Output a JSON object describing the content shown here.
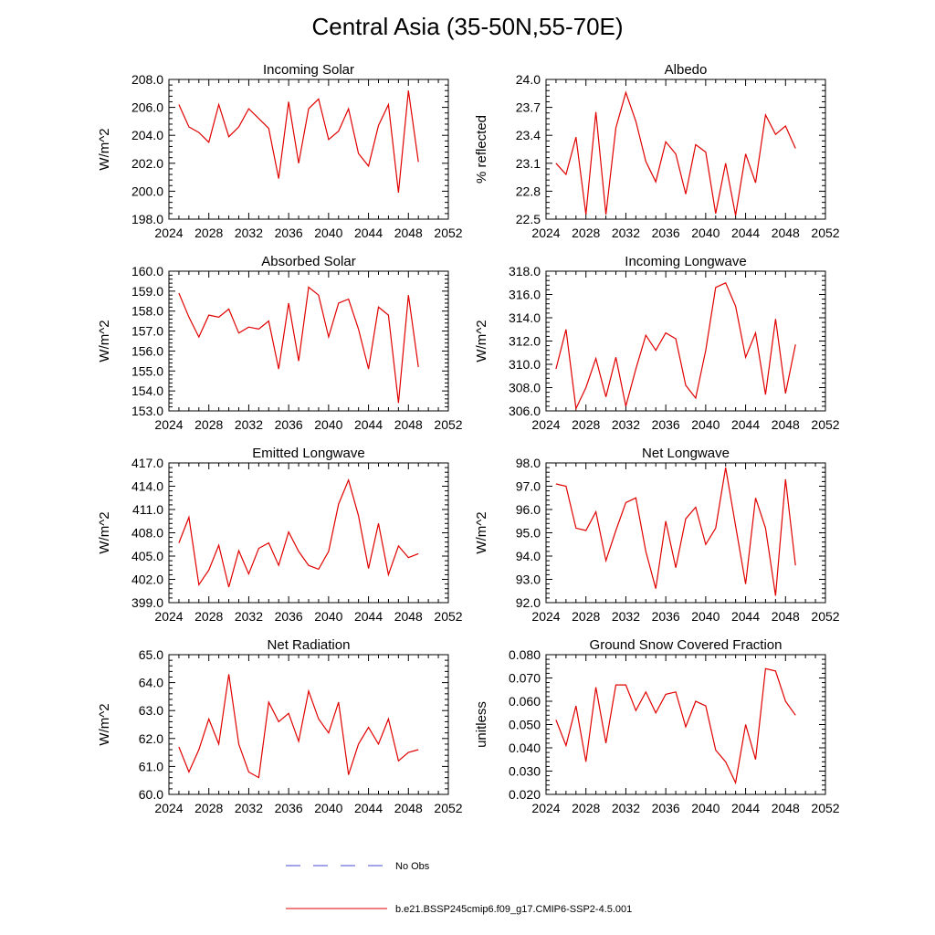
{
  "title": "Central Asia (35-50N,55-70E)",
  "legend": [
    {
      "label": "No Obs",
      "color": "#4a4ad0",
      "dash": true
    },
    {
      "label": "b.e21.BSSP245cmip6.f09_g17.CMIP6-SSP2-4.5.001",
      "color": "#e00000",
      "dash": false
    }
  ],
  "chart_data": [
    {
      "type": "line",
      "title": "Incoming Solar",
      "ylabel": "W/m^2",
      "xlim": [
        2024,
        2052
      ],
      "ylim": [
        198.0,
        208.0
      ],
      "xticks": [
        "2024",
        "2028",
        "2032",
        "2036",
        "2040",
        "2044",
        "2048",
        "2052"
      ],
      "yticks": [
        "198.0",
        "200.0",
        "202.0",
        "204.0",
        "206.0",
        "208.0"
      ],
      "x": [
        2025,
        2026,
        2027,
        2028,
        2029,
        2030,
        2031,
        2032,
        2033,
        2034,
        2035,
        2036,
        2037,
        2038,
        2039,
        2040,
        2041,
        2042,
        2043,
        2044,
        2045,
        2046,
        2047,
        2048,
        2049
      ],
      "series": [
        {
          "color": "#e00000",
          "values": [
            206.2,
            204.6,
            204.2,
            203.5,
            206.2,
            203.9,
            204.6,
            205.9,
            205.2,
            204.5,
            200.9,
            206.4,
            202.0,
            205.9,
            206.6,
            203.7,
            204.3,
            205.9,
            202.7,
            201.8,
            204.7,
            206.2,
            199.9,
            207.2,
            202.1
          ]
        }
      ]
    },
    {
      "type": "line",
      "title": "Albedo",
      "ylabel": "% reflected",
      "xlim": [
        2024,
        2052
      ],
      "ylim": [
        22.5,
        24.0
      ],
      "xticks": [
        "2024",
        "2028",
        "2032",
        "2036",
        "2040",
        "2044",
        "2048",
        "2052"
      ],
      "yticks": [
        "22.5",
        "22.8",
        "23.1",
        "23.4",
        "23.7",
        "24.0"
      ],
      "x": [
        2025,
        2026,
        2027,
        2028,
        2029,
        2030,
        2031,
        2032,
        2033,
        2034,
        2035,
        2036,
        2037,
        2038,
        2039,
        2040,
        2041,
        2042,
        2043,
        2044,
        2045,
        2046,
        2047,
        2048,
        2049
      ],
      "series": [
        {
          "color": "#e00000",
          "values": [
            23.1,
            22.98,
            23.38,
            22.55,
            23.65,
            22.55,
            23.48,
            23.86,
            23.55,
            23.12,
            22.9,
            23.33,
            23.2,
            22.77,
            23.3,
            23.22,
            22.56,
            23.1,
            22.54,
            23.2,
            22.89,
            23.62,
            23.41,
            23.5,
            23.26
          ]
        }
      ]
    },
    {
      "type": "line",
      "title": "Absorbed Solar",
      "ylabel": "W/m^2",
      "xlim": [
        2024,
        2052
      ],
      "ylim": [
        153.0,
        160.0
      ],
      "xticks": [
        "2024",
        "2028",
        "2032",
        "2036",
        "2040",
        "2044",
        "2048",
        "2052"
      ],
      "yticks": [
        "153.0",
        "154.0",
        "155.0",
        "156.0",
        "157.0",
        "158.0",
        "159.0",
        "160.0"
      ],
      "x": [
        2025,
        2026,
        2027,
        2028,
        2029,
        2030,
        2031,
        2032,
        2033,
        2034,
        2035,
        2036,
        2037,
        2038,
        2039,
        2040,
        2041,
        2042,
        2043,
        2044,
        2045,
        2046,
        2047,
        2048,
        2049
      ],
      "series": [
        {
          "color": "#e00000",
          "values": [
            158.9,
            157.7,
            156.7,
            157.8,
            157.7,
            158.1,
            156.9,
            157.2,
            157.1,
            157.5,
            155.1,
            158.4,
            155.5,
            159.2,
            158.8,
            156.7,
            158.4,
            158.6,
            157.1,
            155.1,
            158.2,
            157.8,
            153.4,
            158.8,
            155.2
          ]
        }
      ]
    },
    {
      "type": "line",
      "title": "Incoming Longwave",
      "ylabel": "W/m^2",
      "xlim": [
        2024,
        2052
      ],
      "ylim": [
        306.0,
        318.0
      ],
      "xticks": [
        "2024",
        "2028",
        "2032",
        "2036",
        "2040",
        "2044",
        "2048",
        "2052"
      ],
      "yticks": [
        "306.0",
        "308.0",
        "310.0",
        "312.0",
        "314.0",
        "316.0",
        "318.0"
      ],
      "x": [
        2025,
        2026,
        2027,
        2028,
        2029,
        2030,
        2031,
        2032,
        2033,
        2034,
        2035,
        2036,
        2037,
        2038,
        2039,
        2040,
        2041,
        2042,
        2043,
        2044,
        2045,
        2046,
        2047,
        2048,
        2049
      ],
      "series": [
        {
          "color": "#e00000",
          "values": [
            309.6,
            313.0,
            306.2,
            308.0,
            310.5,
            307.2,
            310.6,
            306.4,
            309.6,
            312.5,
            311.2,
            312.7,
            312.2,
            308.2,
            307.1,
            311.2,
            316.6,
            317.0,
            315.0,
            310.6,
            312.7,
            307.4,
            313.9,
            307.5,
            311.7
          ]
        }
      ]
    },
    {
      "type": "line",
      "title": "Emitted Longwave",
      "ylabel": "W/m^2",
      "xlim": [
        2024,
        2052
      ],
      "ylim": [
        399.0,
        417.0
      ],
      "xticks": [
        "2024",
        "2028",
        "2032",
        "2036",
        "2040",
        "2044",
        "2048",
        "2052"
      ],
      "yticks": [
        "399.0",
        "402.0",
        "405.0",
        "408.0",
        "411.0",
        "414.0",
        "417.0"
      ],
      "x": [
        2025,
        2026,
        2027,
        2028,
        2029,
        2030,
        2031,
        2032,
        2033,
        2034,
        2035,
        2036,
        2037,
        2038,
        2039,
        2040,
        2041,
        2042,
        2043,
        2044,
        2045,
        2046,
        2047,
        2048,
        2049
      ],
      "series": [
        {
          "color": "#e00000",
          "values": [
            406.7,
            410.0,
            401.3,
            403.2,
            406.4,
            401.0,
            405.7,
            402.7,
            406.0,
            406.7,
            403.8,
            408.1,
            405.6,
            403.8,
            403.3,
            405.6,
            411.7,
            414.8,
            410.2,
            403.4,
            409.2,
            402.6,
            406.3,
            404.8,
            405.3
          ]
        }
      ]
    },
    {
      "type": "line",
      "title": "Net Longwave",
      "ylabel": "W/m^2",
      "xlim": [
        2024,
        2052
      ],
      "ylim": [
        92.0,
        98.0
      ],
      "xticks": [
        "2024",
        "2028",
        "2032",
        "2036",
        "2040",
        "2044",
        "2048",
        "2052"
      ],
      "yticks": [
        "92.0",
        "93.0",
        "94.0",
        "95.0",
        "96.0",
        "97.0",
        "98.0"
      ],
      "x": [
        2025,
        2026,
        2027,
        2028,
        2029,
        2030,
        2031,
        2032,
        2033,
        2034,
        2035,
        2036,
        2037,
        2038,
        2039,
        2040,
        2041,
        2042,
        2043,
        2044,
        2045,
        2046,
        2047,
        2048,
        2049
      ],
      "series": [
        {
          "color": "#e00000",
          "values": [
            97.1,
            97.0,
            95.2,
            95.1,
            95.9,
            93.8,
            95.1,
            96.3,
            96.5,
            94.2,
            92.6,
            95.5,
            93.5,
            95.6,
            96.1,
            94.5,
            95.2,
            97.8,
            95.3,
            92.8,
            96.5,
            95.2,
            92.3,
            97.3,
            93.6
          ]
        }
      ]
    },
    {
      "type": "line",
      "title": "Net Radiation",
      "ylabel": "W/m^2",
      "xlim": [
        2024,
        2052
      ],
      "ylim": [
        60.0,
        65.0
      ],
      "xticks": [
        "2024",
        "2028",
        "2032",
        "2036",
        "2040",
        "2044",
        "2048",
        "2052"
      ],
      "yticks": [
        "60.0",
        "61.0",
        "62.0",
        "63.0",
        "64.0",
        "65.0"
      ],
      "x": [
        2025,
        2026,
        2027,
        2028,
        2029,
        2030,
        2031,
        2032,
        2033,
        2034,
        2035,
        2036,
        2037,
        2038,
        2039,
        2040,
        2041,
        2042,
        2043,
        2044,
        2045,
        2046,
        2047,
        2048,
        2049
      ],
      "series": [
        {
          "color": "#e00000",
          "values": [
            61.7,
            60.8,
            61.6,
            62.7,
            61.8,
            64.3,
            61.8,
            60.8,
            60.6,
            63.3,
            62.6,
            62.9,
            61.9,
            63.7,
            62.7,
            62.2,
            63.3,
            60.7,
            61.8,
            62.4,
            61.8,
            62.7,
            61.2,
            61.5,
            61.6
          ]
        }
      ]
    },
    {
      "type": "line",
      "title": "Ground Snow Covered Fraction",
      "ylabel": "unitless",
      "xlim": [
        2024,
        2052
      ],
      "ylim": [
        0.02,
        0.08
      ],
      "xticks": [
        "2024",
        "2028",
        "2032",
        "2036",
        "2040",
        "2044",
        "2048",
        "2052"
      ],
      "yticks": [
        "0.020",
        "0.030",
        "0.040",
        "0.050",
        "0.060",
        "0.070",
        "0.080"
      ],
      "x": [
        2025,
        2026,
        2027,
        2028,
        2029,
        2030,
        2031,
        2032,
        2033,
        2034,
        2035,
        2036,
        2037,
        2038,
        2039,
        2040,
        2041,
        2042,
        2043,
        2044,
        2045,
        2046,
        2047,
        2048,
        2049
      ],
      "series": [
        {
          "color": "#e00000",
          "values": [
            0.052,
            0.041,
            0.058,
            0.034,
            0.066,
            0.042,
            0.067,
            0.067,
            0.056,
            0.064,
            0.055,
            0.063,
            0.064,
            0.049,
            0.06,
            0.058,
            0.039,
            0.034,
            0.025,
            0.05,
            0.035,
            0.074,
            0.073,
            0.06,
            0.054
          ]
        }
      ]
    }
  ]
}
